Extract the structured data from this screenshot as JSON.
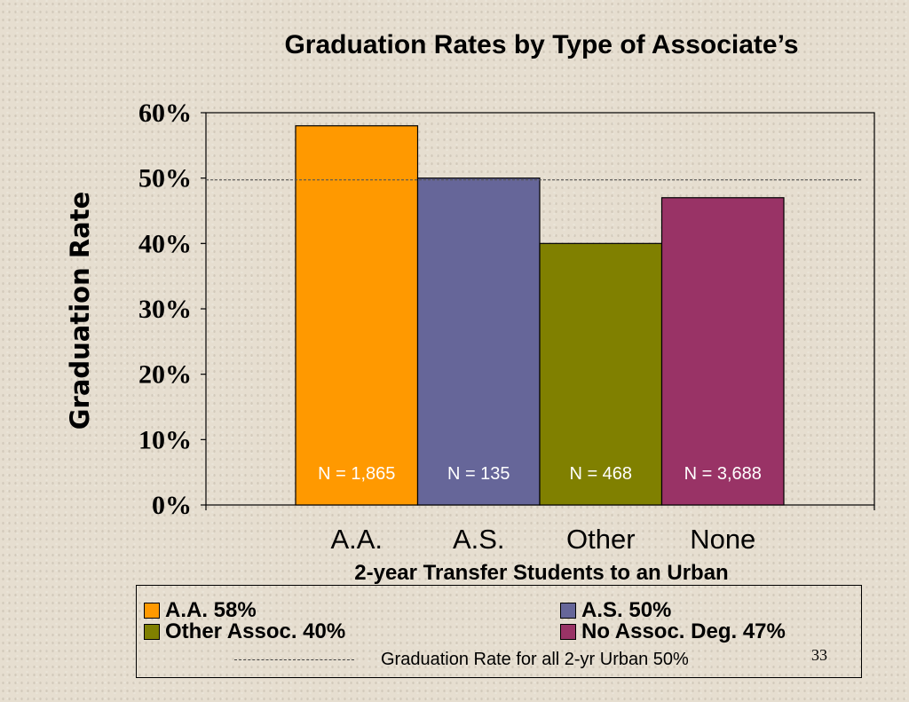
{
  "chart_data": {
    "type": "bar",
    "title": "Graduation Rates by Type of Associate’s",
    "ylabel": "Graduation Rate",
    "xlabel": "2-year Transfer Students to an Urban",
    "categories": [
      "A.A.",
      "A.S.",
      "Other",
      "None"
    ],
    "values": [
      58,
      50,
      40,
      47
    ],
    "n_labels": [
      "N = 1,865",
      "N =  135",
      "N =  468",
      "N = 3,688"
    ],
    "colors": [
      "#ff9900",
      "#666699",
      "#808000",
      "#993366"
    ],
    "ylim": [
      0,
      60
    ],
    "yticks": [
      "0%",
      "10%",
      "20%",
      "30%",
      "40%",
      "50%",
      "60%"
    ],
    "reference_line": {
      "value": 50,
      "label": "Graduation Rate for all 2-yr Urban  50%"
    },
    "grid": false,
    "legend_position": "bottom",
    "legend": [
      {
        "label": "A.A.   58%",
        "color": "#ff9900"
      },
      {
        "label": "A.S.  50%",
        "color": "#666699"
      },
      {
        "label": "Other Assoc.   40%",
        "color": "#808000"
      },
      {
        "label": "No Assoc. Deg.  47%",
        "color": "#993366"
      }
    ]
  },
  "page_number": "33"
}
